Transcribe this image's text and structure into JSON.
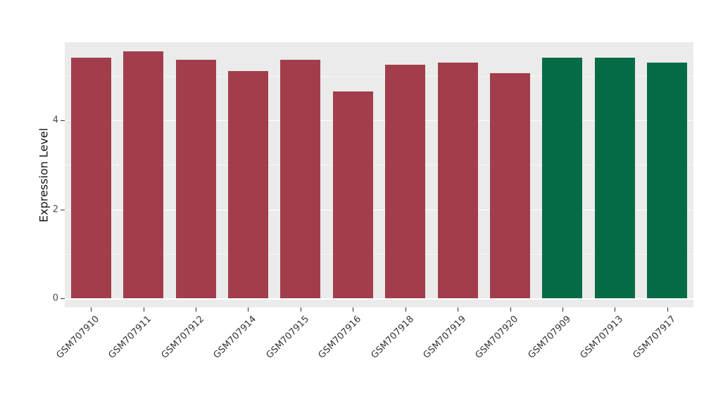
{
  "chart_data": {
    "type": "bar",
    "title": "",
    "xlabel": "",
    "ylabel": "Expression Level",
    "ylim": [
      0,
      5.75
    ],
    "yticks": [
      0,
      2,
      4
    ],
    "grid": "on",
    "legend": null,
    "categories": [
      "GSM707910",
      "GSM707911",
      "GSM707912",
      "GSM707914",
      "GSM707915",
      "GSM707916",
      "GSM707918",
      "GSM707919",
      "GSM707920",
      "GSM707909",
      "GSM707913",
      "GSM707917"
    ],
    "values": [
      5.4,
      5.55,
      5.35,
      5.1,
      5.35,
      4.65,
      5.25,
      5.3,
      5.05,
      5.4,
      5.4,
      5.3
    ],
    "bar_colors": [
      "#A23E4C",
      "#A23E4C",
      "#A23E4C",
      "#A23E4C",
      "#A23E4C",
      "#A23E4C",
      "#A23E4C",
      "#A23E4C",
      "#A23E4C",
      "#046B45",
      "#046B45",
      "#046B45"
    ],
    "colors": {
      "red_group": "#A23E4C",
      "green_group": "#046B45",
      "panel_background": "#EBEBEB",
      "gridline": "#FFFFFF",
      "axis_text": "#4D4D4D"
    }
  }
}
